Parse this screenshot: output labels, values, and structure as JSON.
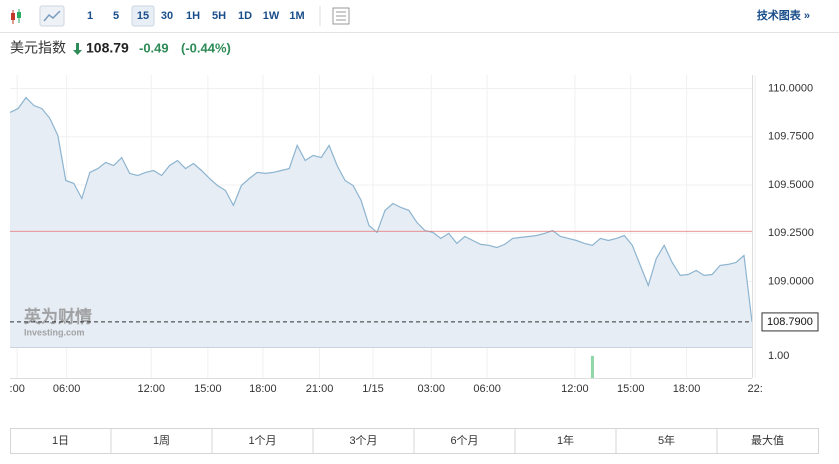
{
  "toolbar": {
    "intervals": [
      "1",
      "5",
      "15",
      "30",
      "1H",
      "5H",
      "1D",
      "1W",
      "1M"
    ],
    "active": "15",
    "link": "技术图表 »"
  },
  "header": {
    "name": "美元指数",
    "price": "108.79",
    "change": "-0.49",
    "change_pct": "(-0.44%)"
  },
  "watermark": {
    "brand": "英为财情",
    "site": "Investing.com"
  },
  "chart_data": {
    "type": "area",
    "color": "#8db4d0",
    "fill": "#e6edf4",
    "values": [
      109.876,
      109.896,
      109.953,
      109.912,
      109.896,
      109.845,
      109.756,
      109.523,
      109.508,
      109.43,
      109.565,
      109.585,
      109.617,
      109.601,
      109.642,
      109.56,
      109.549,
      109.565,
      109.575,
      109.549,
      109.601,
      109.627,
      109.585,
      109.611,
      109.575,
      109.534,
      109.497,
      109.472,
      109.394,
      109.497,
      109.534,
      109.565,
      109.56,
      109.565,
      109.575,
      109.585,
      109.705,
      109.627,
      109.653,
      109.642,
      109.705,
      109.601,
      109.523,
      109.497,
      109.42,
      109.29,
      109.254,
      109.368,
      109.404,
      109.383,
      109.368,
      109.306,
      109.264,
      109.254,
      109.223,
      109.249,
      109.197,
      109.233,
      109.212,
      109.192,
      109.187,
      109.176,
      109.192,
      109.223,
      109.228,
      109.233,
      109.238,
      109.249,
      109.264,
      109.233,
      109.223,
      109.212,
      109.197,
      109.187,
      109.223,
      109.212,
      109.223,
      109.238,
      109.187,
      109.083,
      108.979,
      109.119,
      109.187,
      109.098,
      109.031,
      109.036,
      109.057,
      109.031,
      109.036,
      109.083,
      109.088,
      109.098,
      109.135,
      108.79
    ],
    "xlim": [
      0,
      93
    ],
    "xticks": [
      {
        "value": 0.9,
        "label": ":00"
      },
      {
        "value": 7.1,
        "label": "06:00"
      },
      {
        "value": 17.7,
        "label": "12:00"
      },
      {
        "value": 24.8,
        "label": "15:00"
      },
      {
        "value": 31.7,
        "label": "18:00"
      },
      {
        "value": 38.8,
        "label": "21:00"
      },
      {
        "value": 45.5,
        "label": "1/15"
      },
      {
        "value": 52.8,
        "label": "03:00"
      },
      {
        "value": 59.8,
        "label": "06:00"
      },
      {
        "value": 70.8,
        "label": "12:00"
      },
      {
        "value": 77.8,
        "label": "15:00"
      },
      {
        "value": 84.8,
        "label": "18:00"
      },
      {
        "value": 93.4,
        "label": "22:"
      }
    ],
    "ylim": [
      108.66,
      110.07
    ],
    "yticks": [
      {
        "value": 110,
        "label": "110.0000"
      },
      {
        "value": 109.75,
        "label": "109.7500"
      },
      {
        "value": 109.5,
        "label": "109.5000"
      },
      {
        "value": 109.25,
        "label": "109.2500"
      },
      {
        "value": 109,
        "label": "109.0000"
      }
    ],
    "reference_line": {
      "value": 109.26,
      "color": "#e57373"
    },
    "last_price": {
      "value": 108.79,
      "label": "108.7900"
    },
    "grid": true,
    "volume": {
      "x": [
        73
      ],
      "values": [
        1
      ],
      "color": "#8fd6a8"
    },
    "y2lim": [
      0,
      1.4
    ],
    "y2ticks": [
      {
        "value": 1,
        "label": "1.00"
      }
    ]
  },
  "ranges": [
    "1日",
    "1周",
    "1个月",
    "3个月",
    "6个月",
    "1年",
    "5年",
    "最大值"
  ]
}
